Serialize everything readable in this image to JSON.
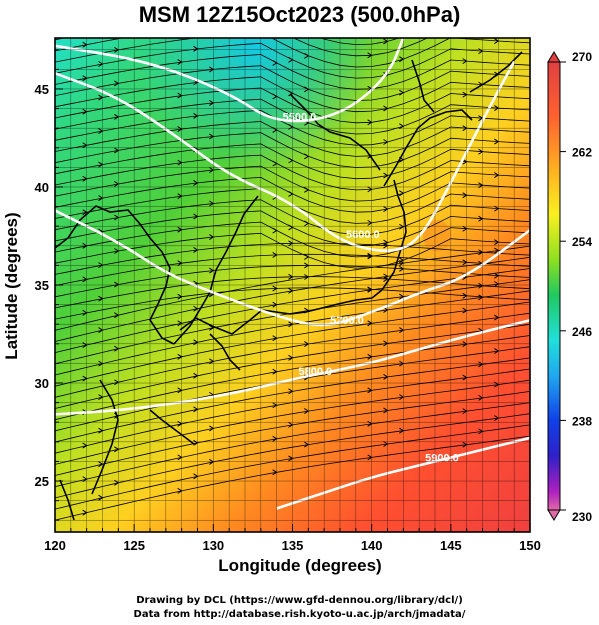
{
  "title": "MSM 12Z15Oct2023 (500.0hPa)",
  "x_axis": {
    "label": "Longitude (degrees)",
    "range": [
      120,
      150
    ],
    "ticks": [
      "120",
      "125",
      "130",
      "135",
      "140",
      "145",
      "150"
    ]
  },
  "y_axis": {
    "label": "Latitude  (degrees)",
    "range": [
      22.4,
      47.6
    ],
    "ticks": [
      "25",
      "30",
      "35",
      "40",
      "45"
    ]
  },
  "colorbar": {
    "range": [
      230,
      270
    ],
    "tick_labels": [
      "270",
      "262",
      "254",
      "246",
      "238",
      "230"
    ],
    "colors": [
      "#e06aa8",
      "#b020c0",
      "#3020c8",
      "#1040e8",
      "#20a8f0",
      "#20e0d8",
      "#20c860",
      "#50d030",
      "#b0e020",
      "#f0f020",
      "#ffc020",
      "#ff9020",
      "#ff5030",
      "#f03030",
      "#e04040"
    ]
  },
  "contours": [
    {
      "label": "5500.0",
      "lat_points": [
        [
          120,
          47.2
        ],
        [
          126,
          46.4
        ],
        [
          131,
          44.8
        ],
        [
          134,
          43.2
        ],
        [
          138,
          43.6
        ],
        [
          141,
          45.6
        ],
        [
          142,
          47.6
        ]
      ]
    },
    {
      "label": "5600.0",
      "lat_points": [
        [
          120,
          45.8
        ],
        [
          124,
          44.6
        ],
        [
          128,
          42.4
        ],
        [
          131,
          40.6
        ],
        [
          135,
          39.2
        ],
        [
          138,
          37.2
        ],
        [
          141,
          36.6
        ],
        [
          143,
          37.2
        ],
        [
          145,
          40.2
        ],
        [
          147,
          43.4
        ],
        [
          149,
          46.4
        ]
      ]
    },
    {
      "label": "5700.0",
      "lat_points": [
        [
          120,
          38.8
        ],
        [
          124,
          37.2
        ],
        [
          127,
          35.6
        ],
        [
          130,
          34.6
        ],
        [
          134,
          33.4
        ],
        [
          137,
          32.8
        ],
        [
          140,
          33.6
        ],
        [
          143,
          34.6
        ],
        [
          146,
          35.4
        ],
        [
          150,
          37.8
        ]
      ]
    },
    {
      "label": "5800.0",
      "lat_points": [
        [
          120,
          28.4
        ],
        [
          124,
          28.6
        ],
        [
          128,
          29.0
        ],
        [
          132,
          29.6
        ],
        [
          135,
          30.2
        ],
        [
          140,
          31.0
        ],
        [
          145,
          32.2
        ],
        [
          150,
          33.2
        ]
      ]
    },
    {
      "label": "5900.0",
      "lat_points": [
        [
          134,
          23.6
        ],
        [
          137,
          24.4
        ],
        [
          140,
          25.2
        ],
        [
          143,
          25.8
        ],
        [
          146,
          26.4
        ],
        [
          150,
          27.2
        ]
      ]
    }
  ],
  "credits": [
    "Drawing by DCL (https://www.gfd-dennou.org/library/dcl/)",
    "Data from http://database.rish.kyoto-u.ac.jp/arch/jmadata/"
  ]
}
